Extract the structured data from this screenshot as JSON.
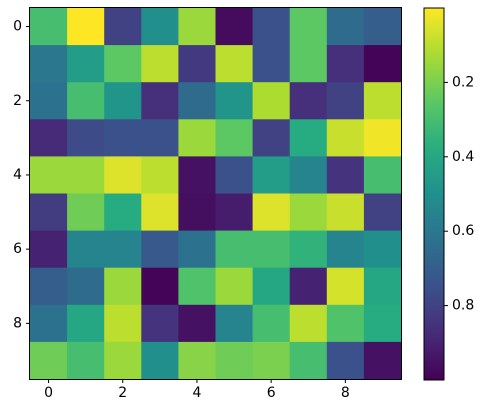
{
  "chart_data": {
    "type": "heatmap",
    "title": "",
    "xlabel": "",
    "ylabel": "",
    "colormap": "viridis_r",
    "x_ticks": [
      0,
      2,
      4,
      6,
      8
    ],
    "y_ticks": [
      0,
      2,
      4,
      6,
      8
    ],
    "xlim": [
      -0.5,
      9.5
    ],
    "ylim": [
      9.5,
      -0.5
    ],
    "grid": false,
    "colorbar": {
      "placement": "right",
      "vmin": 0.0,
      "vmax": 1.0,
      "ticks": [
        0.2,
        0.4,
        0.6,
        0.8
      ]
    },
    "z": [
      [
        0.3,
        0.0,
        0.8,
        0.5,
        0.15,
        0.97,
        0.75,
        0.25,
        0.65,
        0.7
      ],
      [
        0.6,
        0.45,
        0.25,
        0.1,
        0.83,
        0.1,
        0.75,
        0.25,
        0.86,
        0.99
      ],
      [
        0.62,
        0.3,
        0.48,
        0.86,
        0.65,
        0.48,
        0.12,
        0.86,
        0.8,
        0.1
      ],
      [
        0.88,
        0.77,
        0.75,
        0.75,
        0.15,
        0.25,
        0.8,
        0.38,
        0.08,
        0.02
      ],
      [
        0.15,
        0.15,
        0.05,
        0.1,
        0.95,
        0.75,
        0.45,
        0.55,
        0.85,
        0.3
      ],
      [
        0.82,
        0.22,
        0.38,
        0.05,
        0.96,
        0.92,
        0.05,
        0.15,
        0.08,
        0.8
      ],
      [
        0.9,
        0.55,
        0.55,
        0.72,
        0.62,
        0.3,
        0.3,
        0.35,
        0.55,
        0.5
      ],
      [
        0.7,
        0.65,
        0.15,
        0.99,
        0.28,
        0.15,
        0.4,
        0.9,
        0.06,
        0.4
      ],
      [
        0.62,
        0.4,
        0.1,
        0.85,
        0.95,
        0.55,
        0.3,
        0.1,
        0.28,
        0.38
      ],
      [
        0.22,
        0.3,
        0.15,
        0.5,
        0.18,
        0.22,
        0.2,
        0.3,
        0.75,
        0.95
      ]
    ]
  }
}
